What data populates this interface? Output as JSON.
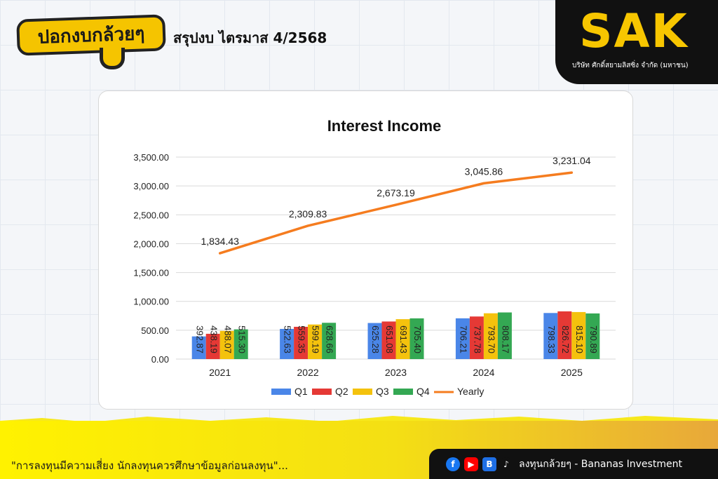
{
  "header": {
    "logo_text": "ปอกงบกล้วยๆ",
    "title": "สรุปงบ ไตรมาส 4/2568"
  },
  "brand": {
    "name": "SAK",
    "subtitle": "บริษัท ศักดิ์สยามลิสซิ่ง จำกัด (มหาชน)"
  },
  "footer": {
    "disclaimer": "\"การลงทุนมีความเสี่ยง นักลงทุนควรศึกษาข้อมูลก่อนลงทุน\"...",
    "channel": "ลงทุนกล้วยๆ - Bananas Investment",
    "icons": [
      "facebook-icon",
      "youtube-icon",
      "blockdit-icon",
      "tiktok-icon"
    ]
  },
  "chart_data": {
    "type": "bar",
    "title": "Interest Income",
    "categories": [
      "2021",
      "2022",
      "2023",
      "2024",
      "2025"
    ],
    "series": [
      {
        "name": "Q1",
        "color": "#4a86e8",
        "values": [
          392.87,
          522.63,
          625.28,
          706.21,
          798.33
        ]
      },
      {
        "name": "Q2",
        "color": "#e53935",
        "values": [
          438.19,
          559.35,
          651.08,
          737.78,
          826.72
        ]
      },
      {
        "name": "Q3",
        "color": "#f4c20d",
        "values": [
          488.07,
          599.19,
          691.43,
          793.7,
          815.1
        ]
      },
      {
        "name": "Q4",
        "color": "#34a853",
        "values": [
          515.3,
          628.66,
          705.4,
          808.17,
          790.89
        ]
      }
    ],
    "line_series": {
      "name": "Yearly",
      "color": "#f57c1f",
      "type": "line",
      "values": [
        1834.43,
        2309.83,
        2673.19,
        3045.86,
        3231.04
      ],
      "labels": [
        "1,834.43",
        "2,309.83",
        "2,673.19",
        "3,045.86",
        "3,231.04"
      ]
    },
    "bar_labels": [
      [
        "392.87",
        "522.63",
        "625.28",
        "706.21",
        "798.33"
      ],
      [
        "438.19",
        "559.35",
        "651.08",
        "737.78",
        "826.72"
      ],
      [
        "488.07",
        "599.19",
        "691.43",
        "793.70",
        "815.10"
      ],
      [
        "515.30",
        "628.66",
        "705.40",
        "808.17",
        "790.89"
      ]
    ],
    "yticks": [
      "0.00",
      "500.00",
      "1,000.00",
      "1,500.00",
      "2,000.00",
      "2,500.00",
      "3,000.00",
      "3,500.00"
    ],
    "ylim": [
      0,
      3500
    ],
    "xlabel": "",
    "ylabel": "",
    "grid": true,
    "legend_position": "bottom"
  }
}
